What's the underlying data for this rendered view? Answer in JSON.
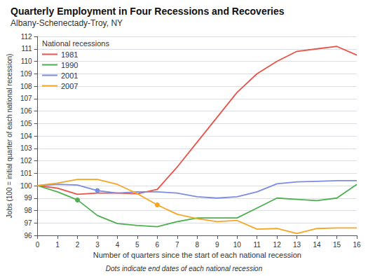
{
  "chart_data": {
    "type": "line",
    "title": "Quarterly Employment in Four Recessions and Recoveries",
    "subtitle": "Albany-Schenectady-Troy, NY",
    "x_label": "Number of quarters since the start of each national recession",
    "y_label": "Jobs (100 = initial quarter of each national recession)",
    "annotation": "Dots indicate end dates of each national recession",
    "legend_title": "National recessions",
    "legend": "upper left",
    "grid": "y",
    "x": [
      0,
      1,
      2,
      3,
      4,
      5,
      6,
      7,
      8,
      9,
      10,
      11,
      12,
      13,
      14,
      15,
      16
    ],
    "xlim": [
      0,
      16
    ],
    "xticks": [
      0,
      1,
      2,
      3,
      4,
      5,
      6,
      7,
      8,
      9,
      10,
      11,
      12,
      13,
      14,
      15,
      16
    ],
    "ylim": [
      96,
      112
    ],
    "yticks": [
      96,
      97,
      98,
      99,
      100,
      101,
      102,
      103,
      104,
      105,
      106,
      107,
      108,
      109,
      110,
      111,
      112
    ],
    "series": [
      {
        "name": "1981",
        "color": "#e8534a",
        "values": [
          100,
          99.8,
          99.3,
          99.4,
          99.4,
          99.35,
          99.7,
          101.5,
          103.5,
          105.5,
          107.5,
          109.0,
          110.0,
          110.8,
          111.0,
          111.2,
          110.5
        ]
      },
      {
        "name": "1990",
        "color": "#4caf50",
        "values": [
          100,
          99.5,
          98.85,
          97.6,
          96.95,
          96.8,
          96.7,
          97.1,
          97.4,
          97.4,
          97.4,
          98.2,
          99.0,
          98.9,
          98.8,
          99.0,
          100.1
        ],
        "end_x": 2,
        "end_y": 98.85
      },
      {
        "name": "2001",
        "color": "#7b8de0",
        "values": [
          100,
          100.1,
          100.05,
          99.6,
          99.4,
          99.5,
          99.5,
          99.4,
          99.1,
          99.0,
          99.1,
          99.5,
          100.15,
          100.3,
          100.35,
          100.4,
          100.4
        ],
        "end_x": 3,
        "end_y": 99.6
      },
      {
        "name": "2007",
        "color": "#f5a623",
        "values": [
          100,
          100.2,
          100.5,
          100.5,
          100.1,
          99.35,
          98.45,
          97.7,
          97.35,
          97.1,
          97.2,
          96.5,
          96.55,
          96.15,
          96.55,
          96.6,
          96.6
        ],
        "end_x": 6,
        "end_y": 98.45
      }
    ]
  }
}
